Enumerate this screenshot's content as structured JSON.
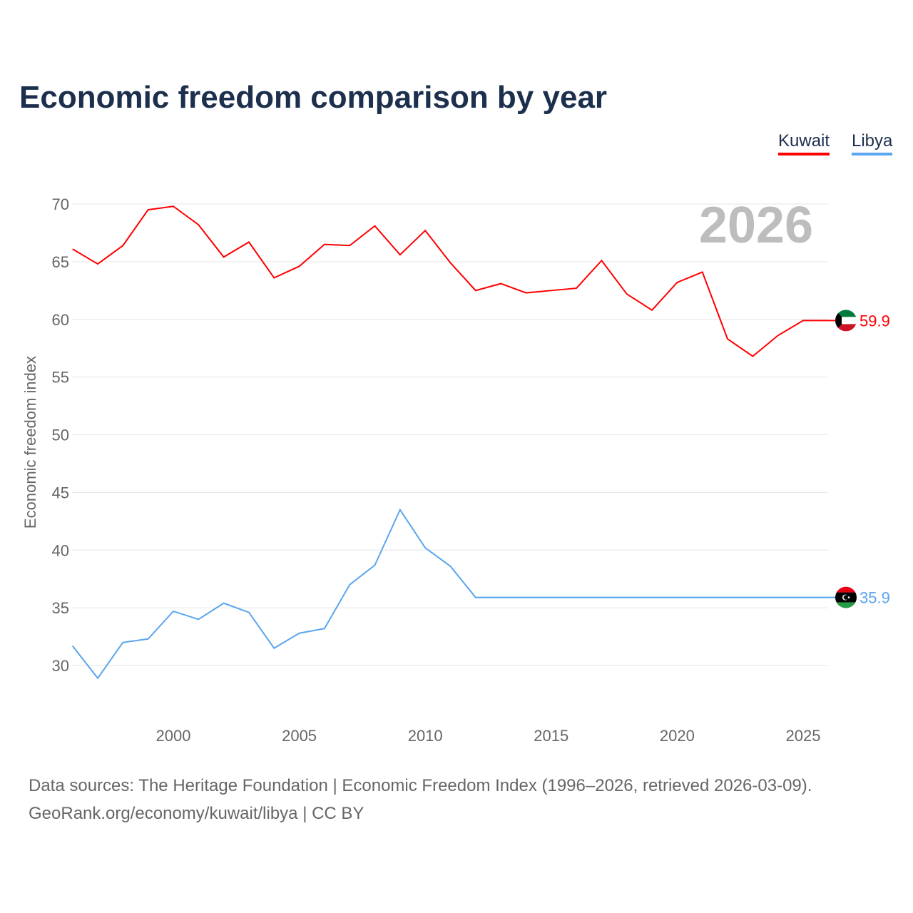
{
  "chart_data": {
    "type": "line",
    "title": "Economic freedom comparison by year",
    "ylabel": "Economic freedom index",
    "xlabel": "",
    "ylim": [
      25,
      72
    ],
    "xlim": [
      1996,
      2026
    ],
    "yticks": [
      30,
      35,
      40,
      45,
      50,
      55,
      60,
      65,
      70
    ],
    "xticks": [
      2000,
      2005,
      2010,
      2015,
      2020,
      2025
    ],
    "grid": true,
    "legend_position": "top-right",
    "year_annotation": "2026",
    "x": [
      1996,
      1997,
      1998,
      1999,
      2000,
      2001,
      2002,
      2003,
      2004,
      2005,
      2006,
      2007,
      2008,
      2009,
      2010,
      2011,
      2012,
      2013,
      2014,
      2015,
      2016,
      2017,
      2018,
      2019,
      2020,
      2021,
      2022,
      2023,
      2024,
      2025,
      2026
    ],
    "series": [
      {
        "name": "Kuwait",
        "color": "#ff0000",
        "end_label": "59.9",
        "values": [
          66.1,
          64.8,
          66.4,
          69.5,
          69.8,
          68.2,
          65.4,
          66.7,
          63.6,
          64.6,
          66.5,
          66.4,
          68.1,
          65.6,
          67.7,
          64.9,
          62.5,
          63.1,
          62.3,
          62.5,
          62.7,
          65.1,
          62.2,
          60.8,
          63.2,
          64.1,
          58.3,
          56.8,
          58.6,
          59.9,
          59.9
        ]
      },
      {
        "name": "Libya",
        "color": "#5aa5ee",
        "end_label": "35.9",
        "values": [
          31.7,
          28.9,
          32.0,
          32.3,
          34.7,
          34.0,
          35.4,
          34.6,
          31.5,
          32.8,
          33.2,
          37.0,
          38.7,
          43.5,
          40.2,
          38.6,
          35.9,
          35.9,
          35.9,
          35.9,
          35.9,
          35.9,
          35.9,
          35.9,
          35.9,
          35.9,
          35.9,
          35.9,
          35.9,
          35.9,
          35.9
        ]
      }
    ]
  },
  "footer": {
    "line1": "Data sources: The Heritage Foundation | Economic Freedom Index (1996–2026, retrieved 2026-03-09).",
    "line2": "GeoRank.org/economy/kuwait/libya | CC BY"
  }
}
